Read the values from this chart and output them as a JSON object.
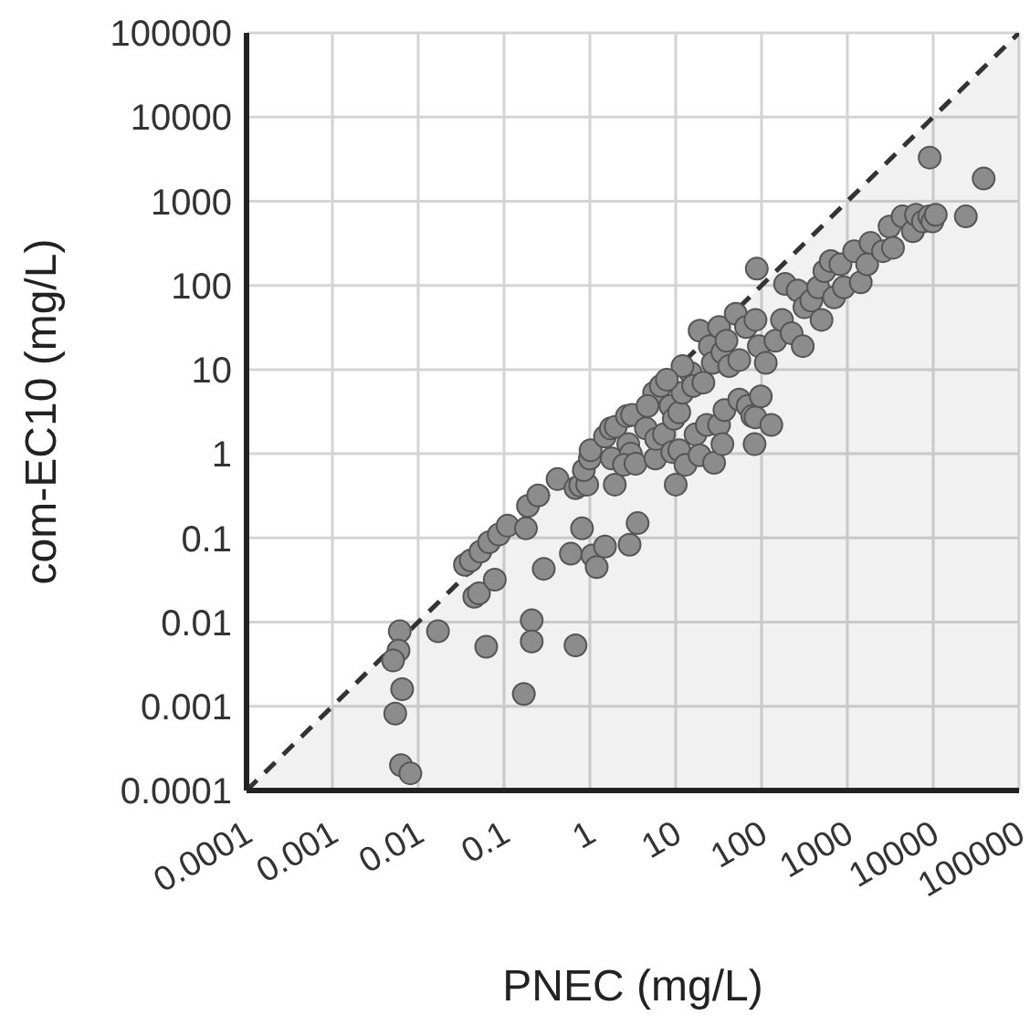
{
  "chart_data": {
    "type": "scatter",
    "xlabel": "PNEC (mg/L)",
    "ylabel": "com-EC10 (mg/L)",
    "log": "xy",
    "grid": true,
    "xlim": [
      0.0001,
      100000
    ],
    "ylim": [
      0.0001,
      100000
    ],
    "xticks": [
      0.0001,
      0.001,
      0.01,
      0.1,
      1,
      10,
      100,
      1000,
      10000,
      100000
    ],
    "yticks": [
      0.0001,
      0.001,
      0.01,
      0.1,
      1,
      10,
      100,
      1000,
      10000,
      100000
    ],
    "x": [
      0.0061,
      0.0059,
      0.0051,
      0.0065,
      0.0054,
      0.0063,
      0.0081,
      0.017,
      0.062,
      0.21,
      0.21,
      0.17,
      0.68,
      0.045,
      0.051,
      0.078,
      0.29,
      0.6,
      0.81,
      1.07,
      1.2,
      1.5,
      2.9,
      3.6,
      1.95,
      0.035,
      0.041,
      0.053,
      0.067,
      0.087,
      0.11,
      0.18,
      0.19,
      0.25,
      0.42,
      0.68,
      0.77,
      0.93,
      0.85,
      1.0,
      1.02,
      1.5,
      1.75,
      2.0,
      2.7,
      3.1,
      1.8,
      2.8,
      3.0,
      2.5,
      3.4,
      4.5,
      5.8,
      5.9,
      7.3,
      5.6,
      6.7,
      8.7,
      9.5,
      11,
      9.1,
      10,
      11,
      13,
      17,
      19,
      23,
      28,
      32,
      35,
      37,
      55,
      69,
      78,
      85,
      83,
      98,
      130,
      12,
      15,
      16,
      19,
      21,
      25,
      27,
      32,
      35,
      39,
      42,
      50,
      55,
      66,
      85,
      88,
      93,
      112,
      145,
      173,
      224,
      188,
      264,
      302,
      316,
      380,
      457,
      500,
      540,
      640,
      700,
      830,
      910,
      1200,
      1430,
      1700,
      1860,
      2600,
      3100,
      3400,
      4400,
      5800,
      6300,
      7600,
      9000,
      9800,
      10700,
      9100,
      24000,
      38700,
      4.7,
      12,
      7.9
    ],
    "series": [
      {
        "values": [
          0.0078,
          0.0046,
          0.0035,
          0.0016,
          0.00082,
          0.0002,
          0.00016,
          0.0078,
          0.0051,
          0.0105,
          0.0059,
          0.0014,
          0.0053,
          0.02,
          0.022,
          0.032,
          0.043,
          0.065,
          0.13,
          0.062,
          0.045,
          0.079,
          0.083,
          0.15,
          0.43,
          0.048,
          0.054,
          0.069,
          0.089,
          0.11,
          0.14,
          0.13,
          0.24,
          0.32,
          0.5,
          0.39,
          0.42,
          0.43,
          0.64,
          0.88,
          1.1,
          1.6,
          2.0,
          2.1,
          2.8,
          2.9,
          0.88,
          1.3,
          1.0,
          0.74,
          0.76,
          2.0,
          0.88,
          1.5,
          1.7,
          5.3,
          6.4,
          3.7,
          2.6,
          3.1,
          1.05,
          0.43,
          1.1,
          0.74,
          1.7,
          0.96,
          2.2,
          0.78,
          2.2,
          1.3,
          3.3,
          4.4,
          3.7,
          2.8,
          2.7,
          1.3,
          4.8,
          2.2,
          5.3,
          9.1,
          6.4,
          29,
          7.0,
          19,
          12,
          32,
          16,
          22,
          11,
          46,
          13,
          32,
          39,
          158,
          19,
          12,
          22,
          39,
          27,
          104,
          87,
          19,
          55,
          66,
          95,
          39,
          148,
          195,
          72,
          178,
          95,
          255,
          109,
          178,
          320,
          255,
          500,
          280,
          660,
          440,
          690,
          575,
          660,
          575,
          690,
          3300,
          660,
          1860,
          3.7,
          11,
          7.6
        ],
        "color": "#8c8c8c",
        "marker": "circle"
      },
      {
        "type": "area",
        "x": [
          0.0001,
          100000
        ],
        "values": [
          0.0001,
          100000
        ],
        "color": "#333333",
        "line_style": "dashed",
        "marker": "none"
      }
    ]
  }
}
